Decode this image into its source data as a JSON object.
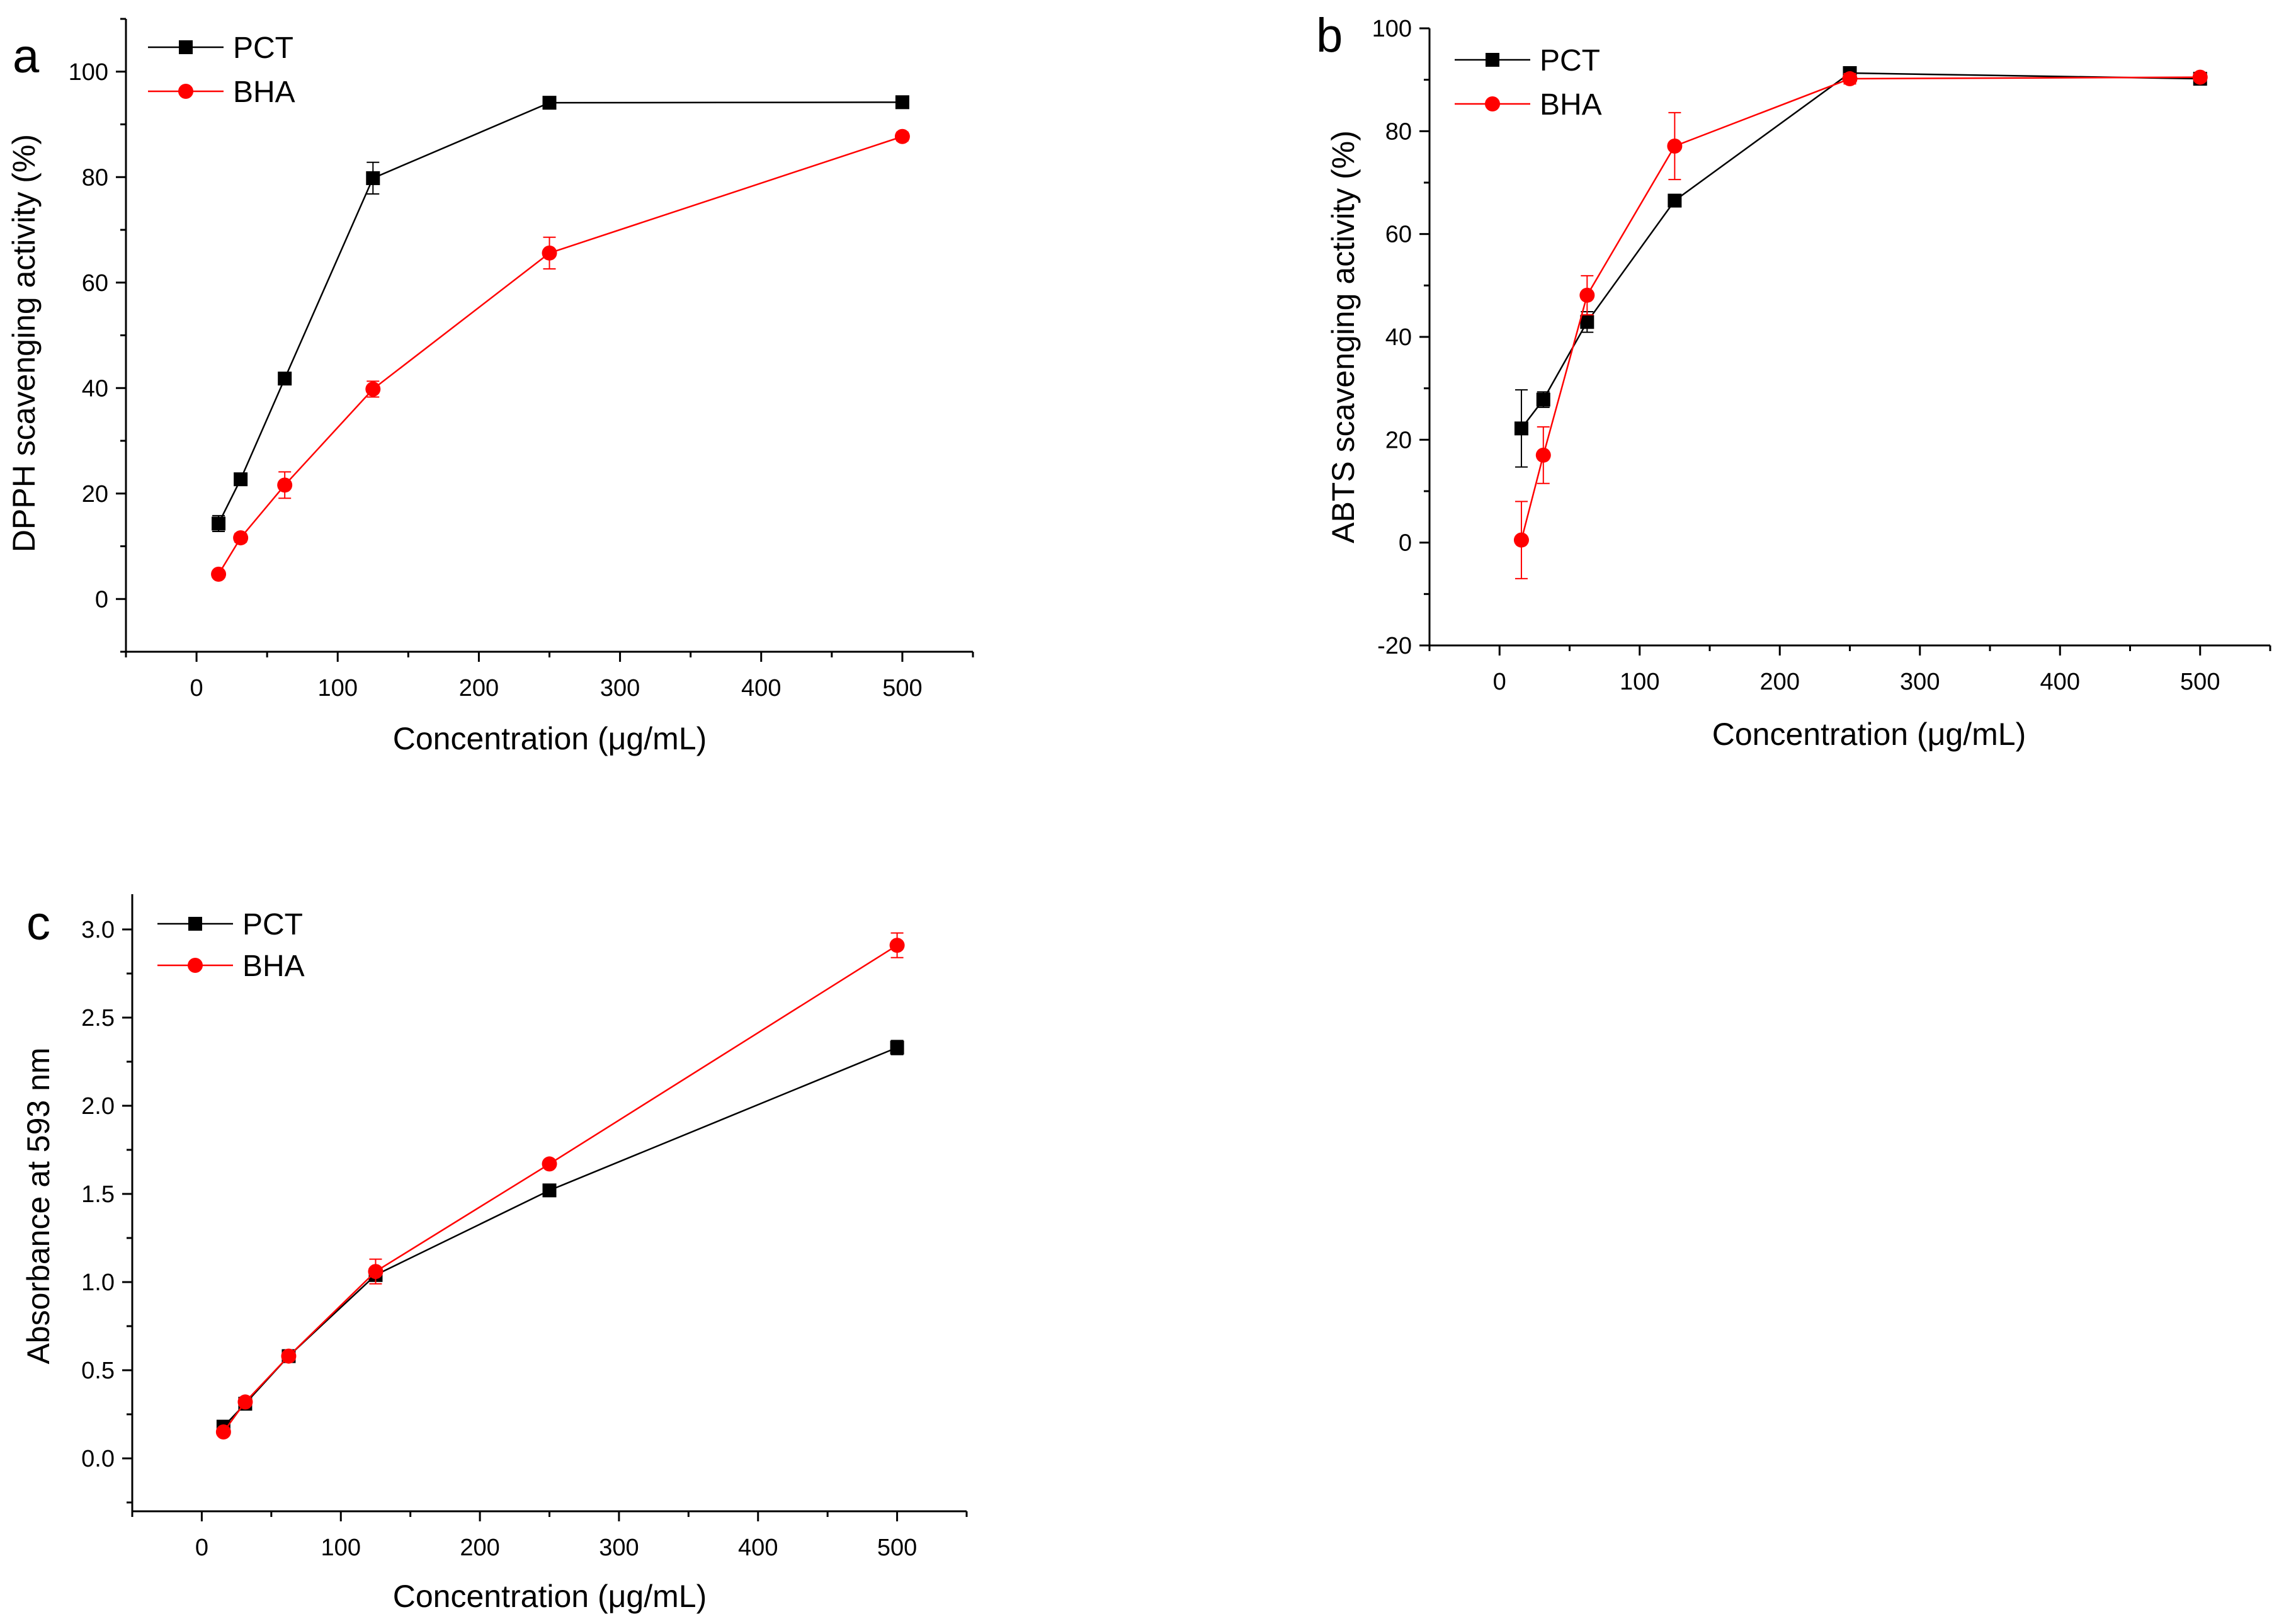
{
  "chart_data": [
    {
      "panel": "a",
      "type": "line",
      "title": "",
      "xlabel": "Concentration (μg/mL)",
      "ylabel": "DPPH scavenging activity (%)",
      "xlim": [
        -50,
        550
      ],
      "ylim": [
        -10,
        110
      ],
      "xticks": [
        0,
        100,
        200,
        300,
        400,
        500
      ],
      "yticks": [
        0,
        20,
        40,
        60,
        80,
        100
      ],
      "legend": "top-left",
      "grid": false,
      "x": [
        15.6,
        31.25,
        62.5,
        125,
        250,
        500
      ],
      "series": [
        {
          "name": "PCT",
          "color": "#000000",
          "marker": "square",
          "values": [
            14.3,
            22.7,
            41.8,
            79.8,
            94.1,
            94.2
          ],
          "errors": [
            1.5,
            1.0,
            0.8,
            3.0,
            0.6,
            0.5
          ]
        },
        {
          "name": "BHA",
          "color": "#ff0000",
          "marker": "circle",
          "values": [
            4.7,
            11.6,
            21.6,
            39.8,
            65.6,
            87.7
          ],
          "errors": [
            0.5,
            0.8,
            2.5,
            1.5,
            3.0,
            0.8
          ]
        }
      ]
    },
    {
      "panel": "b",
      "type": "line",
      "title": "",
      "xlabel": "Concentration (μg/mL)",
      "ylabel": "ABTS scavenging activity (%)",
      "xlim": [
        -50,
        550
      ],
      "ylim": [
        -20,
        100
      ],
      "xticks": [
        0,
        100,
        200,
        300,
        400,
        500
      ],
      "yticks": [
        -20,
        0,
        20,
        40,
        60,
        80,
        100
      ],
      "legend": "top-left",
      "grid": false,
      "x": [
        15.6,
        31.25,
        62.5,
        125,
        250,
        500
      ],
      "series": [
        {
          "name": "PCT",
          "color": "#000000",
          "marker": "square",
          "values": [
            22.2,
            27.8,
            42.9,
            66.5,
            91.3,
            90.2
          ],
          "errors": [
            7.5,
            1.5,
            2.0,
            1.0,
            0.8,
            0.8
          ]
        },
        {
          "name": "BHA",
          "color": "#ff0000",
          "marker": "circle",
          "values": [
            0.5,
            17.0,
            48.1,
            77.1,
            90.2,
            90.5
          ],
          "errors": [
            7.5,
            5.5,
            3.8,
            6.5,
            1.0,
            0.8
          ]
        }
      ]
    },
    {
      "panel": "c",
      "type": "line",
      "title": "",
      "xlabel": "Concentration (μg/mL)",
      "ylabel": "Absorbance at 593 nm",
      "xlim": [
        -50,
        550
      ],
      "ylim": [
        -0.3,
        3.2
      ],
      "xticks": [
        0,
        100,
        200,
        300,
        400,
        500
      ],
      "yticks": [
        0.0,
        0.5,
        1.0,
        1.5,
        2.0,
        2.5,
        3.0
      ],
      "ytick_labels": [
        "0.0",
        "0.5",
        "1.0",
        "1.5",
        "2.0",
        "2.5",
        "3.0"
      ],
      "legend": "top-left",
      "grid": false,
      "x": [
        15.6,
        31.25,
        62.5,
        125,
        250,
        500
      ],
      "series": [
        {
          "name": "PCT",
          "color": "#000000",
          "marker": "square",
          "values": [
            0.18,
            0.31,
            0.58,
            1.04,
            1.52,
            2.33
          ],
          "errors": [
            0.02,
            0.02,
            0.02,
            0.03,
            0.02,
            0.04
          ]
        },
        {
          "name": "BHA",
          "color": "#ff0000",
          "marker": "circle",
          "values": [
            0.15,
            0.32,
            0.58,
            1.06,
            1.67,
            2.91
          ],
          "errors": [
            0.02,
            0.02,
            0.02,
            0.07,
            0.02,
            0.07
          ]
        }
      ]
    }
  ]
}
